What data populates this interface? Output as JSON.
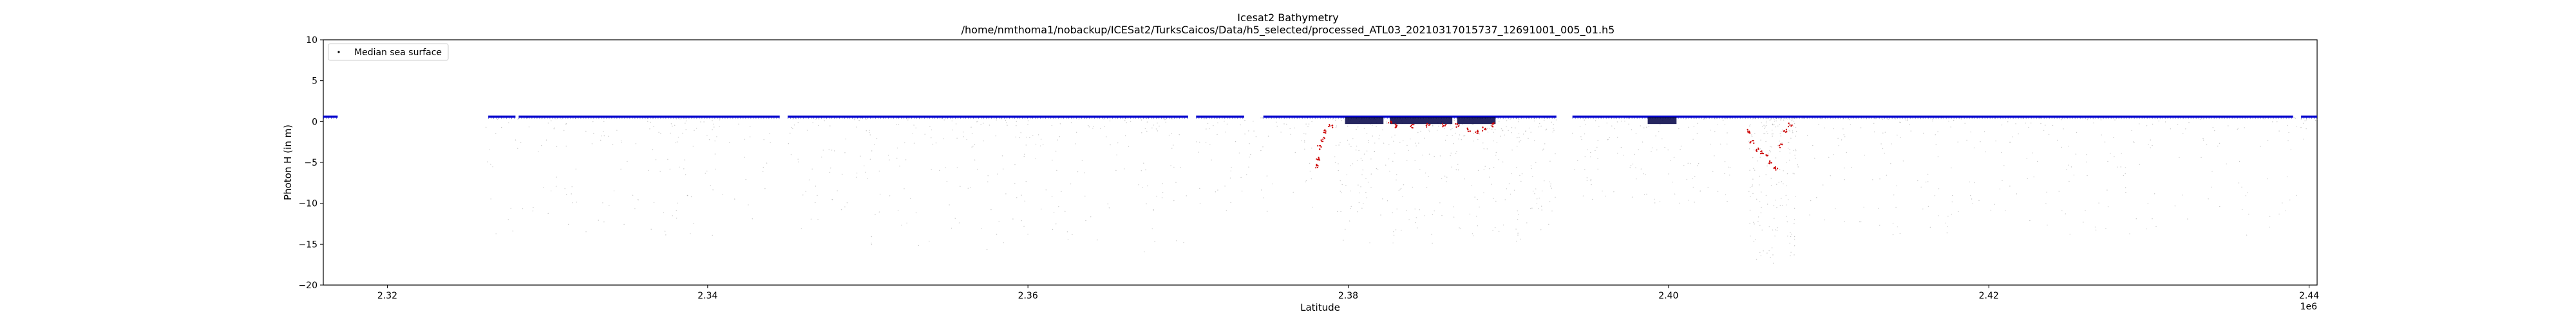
{
  "chart_data": {
    "type": "scatter",
    "title": "Icesat2 Bathymetry",
    "subtitle": "/home/nmthoma1/nobackup/ICESat2/TurksCaicos/Data/h5_selected/processed_ATL03_20210317015737_12691001_005_01.h5",
    "xlabel": "Latitude",
    "ylabel": "Photon H (in m)",
    "x_offset_label": "1e6",
    "xlim": [
      2.316,
      2.4405
    ],
    "ylim": [
      -20,
      10
    ],
    "x_ticks": [
      {
        "value": 2.32,
        "label": "2.32"
      },
      {
        "value": 2.34,
        "label": "2.34"
      },
      {
        "value": 2.36,
        "label": "2.36"
      },
      {
        "value": 2.38,
        "label": "2.38"
      },
      {
        "value": 2.4,
        "label": "2.40"
      },
      {
        "value": 2.42,
        "label": "2.42"
      },
      {
        "value": 2.44,
        "label": "2.44"
      }
    ],
    "y_ticks": [
      {
        "value": 10,
        "label": "10"
      },
      {
        "value": 5,
        "label": "5"
      },
      {
        "value": 0,
        "label": "0"
      },
      {
        "value": -5,
        "label": "−5"
      },
      {
        "value": -10,
        "label": "−10"
      },
      {
        "value": -15,
        "label": "−15"
      },
      {
        "value": -20,
        "label": "−20"
      }
    ],
    "grid": false,
    "legend": {
      "position": "top-left",
      "entries": [
        "Median sea surface"
      ]
    },
    "colors": {
      "sea_surface": "#0000cc",
      "bathymetry": "#cc0000",
      "photons": "#9a9a9a",
      "seabed_dark": "#000044"
    },
    "series": [
      {
        "name": "Median sea surface",
        "kind": "sea_surface",
        "segments": [
          {
            "x": [
              2.316,
              2.3169
            ],
            "y": 0.6
          },
          {
            "x": [
              2.3263,
              2.328
            ],
            "y": 0.6
          },
          {
            "x": [
              2.3282,
              2.3445
            ],
            "y": 0.6
          },
          {
            "x": [
              2.345,
              2.37
            ],
            "y": 0.6
          },
          {
            "x": [
              2.3705,
              2.3735
            ],
            "y": 0.6
          },
          {
            "x": [
              2.3747,
              2.393
            ],
            "y": 0.6
          },
          {
            "x": [
              2.394,
              2.439
            ],
            "y": 0.6
          },
          {
            "x": [
              2.4395,
              2.4405
            ],
            "y": 0.6
          }
        ]
      },
      {
        "kind": "bathymetry",
        "points": [
          [
            2.378,
            -5.5
          ],
          [
            2.3781,
            -4.5
          ],
          [
            2.3782,
            -3.2
          ],
          [
            2.3784,
            -2.2
          ],
          [
            2.3786,
            -1.2
          ],
          [
            2.3789,
            -0.5
          ],
          [
            2.3826,
            -0.2
          ],
          [
            2.383,
            -0.5
          ],
          [
            2.384,
            -0.6
          ],
          [
            2.385,
            -0.5
          ],
          [
            2.386,
            -0.4
          ],
          [
            2.3868,
            -0.5
          ],
          [
            2.3875,
            -1.0
          ],
          [
            2.388,
            -1.2
          ],
          [
            2.3885,
            -0.9
          ],
          [
            2.389,
            -0.4
          ],
          [
            2.405,
            -1.2
          ],
          [
            2.4052,
            -2.5
          ],
          [
            2.4055,
            -3.4
          ],
          [
            2.4058,
            -3.8
          ],
          [
            2.4061,
            -4.2
          ],
          [
            2.4064,
            -5.0
          ],
          [
            2.4067,
            -5.8
          ],
          [
            2.407,
            -3.0
          ],
          [
            2.4073,
            -1.2
          ],
          [
            2.4076,
            -0.4
          ]
        ]
      },
      {
        "kind": "photon_cloud",
        "regions": [
          {
            "x": [
              2.326,
              2.344
            ],
            "y": [
              -14,
              0.5
            ],
            "density": 180
          },
          {
            "x": [
              2.345,
              2.37
            ],
            "y": [
              -16,
              0.5
            ],
            "density": 320
          },
          {
            "x": [
              2.3705,
              2.378
            ],
            "y": [
              -12,
              0.5
            ],
            "density": 90
          },
          {
            "x": [
              2.379,
              2.393
            ],
            "y": [
              -15,
              0.5
            ],
            "density": 420
          },
          {
            "x": [
              2.394,
              2.404
            ],
            "y": [
              -10,
              0.5
            ],
            "density": 160
          },
          {
            "x": [
              2.405,
              2.408
            ],
            "y": [
              -17.5,
              0.5
            ],
            "density": 200
          },
          {
            "x": [
              2.408,
              2.4405
            ],
            "y": [
              -14,
              0.5
            ],
            "density": 320
          }
        ]
      }
    ]
  }
}
